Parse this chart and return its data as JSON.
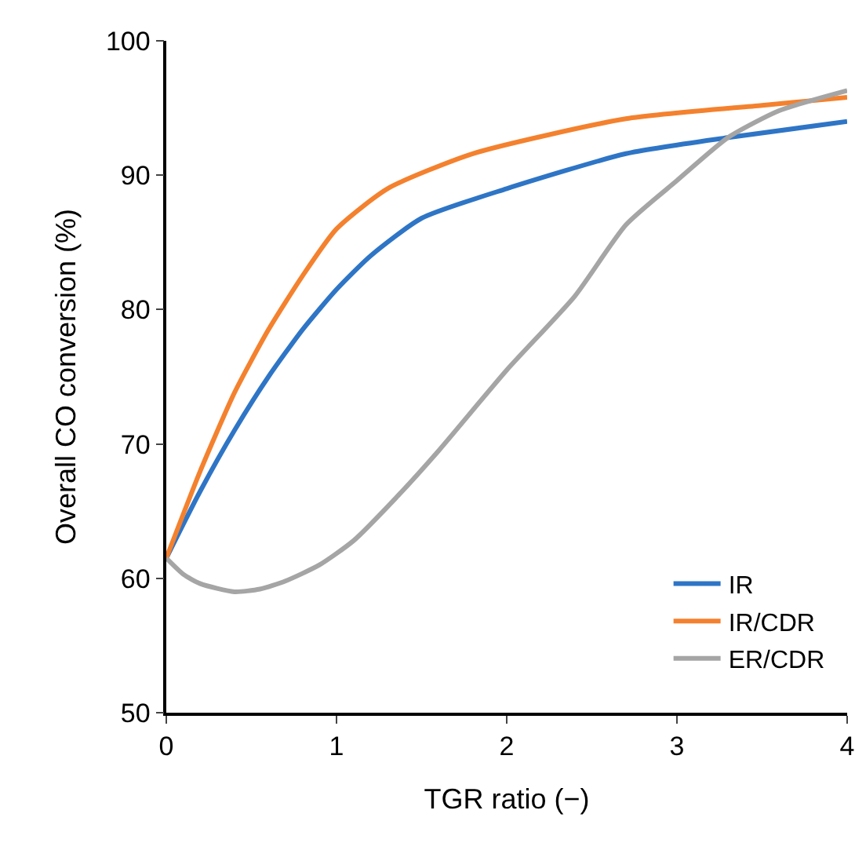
{
  "chart_data": {
    "type": "line",
    "xlabel": "TGR ratio (−)",
    "ylabel": "Overall CO conversion (%)",
    "xlim": [
      0,
      4
    ],
    "xticks": [
      0,
      1,
      2,
      3,
      4
    ],
    "ylim": [
      50,
      100
    ],
    "yticks": [
      50,
      60,
      70,
      80,
      90,
      100
    ],
    "grid": false,
    "legend": "bottom right",
    "marker": "none",
    "line_style": "solid",
    "series": [
      {
        "name": "IR",
        "color": "#2e75c6",
        "x": [
          0,
          0.2,
          0.4,
          0.6,
          0.8,
          1.0,
          1.2,
          1.5,
          2.0,
          2.7,
          3.3,
          4
        ],
        "values": [
          61.5,
          66.5,
          71,
          75,
          78.5,
          81.5,
          84,
          86.8,
          89,
          91.6,
          92.8,
          94
        ]
      },
      {
        "name": "IR/CDR",
        "color": "#f4812e",
        "x": [
          0,
          0.2,
          0.4,
          0.6,
          0.8,
          1.0,
          1.3,
          1.8,
          2.7,
          3.5,
          4
        ],
        "values": [
          61.5,
          68,
          73.8,
          78.5,
          82.5,
          86,
          89,
          91.6,
          94.2,
          95.2,
          95.8
        ]
      },
      {
        "name": "ER/CDR",
        "color": "#a5a5a5",
        "x": [
          0,
          0.1,
          0.2,
          0.4,
          0.55,
          0.7,
          0.9,
          1.1,
          1.35,
          1.6,
          2.0,
          2.4,
          2.7,
          3.0,
          3.3,
          3.6,
          4
        ],
        "values": [
          61.5,
          60.3,
          59.6,
          59,
          59.2,
          59.8,
          61,
          62.8,
          66,
          69.5,
          75.5,
          81,
          86.3,
          89.6,
          92.8,
          94.8,
          96.3
        ]
      }
    ]
  }
}
